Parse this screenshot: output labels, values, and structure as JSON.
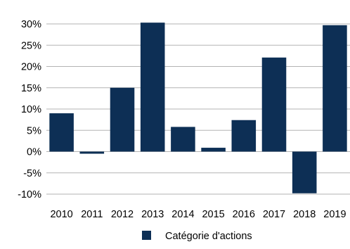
{
  "chart_data": {
    "type": "bar",
    "categories": [
      "2010",
      "2011",
      "2012",
      "2013",
      "2014",
      "2015",
      "2016",
      "2017",
      "2018",
      "2019"
    ],
    "series": [
      {
        "name": "Catégorie d'actions",
        "values": [
          9.0,
          -0.5,
          15.0,
          30.3,
          5.8,
          0.9,
          7.4,
          22.1,
          -9.8,
          29.7
        ],
        "color": "#0d2f55"
      }
    ],
    "ylim": [
      -10,
      30
    ],
    "yticks": [
      30,
      25,
      20,
      15,
      10,
      5,
      0,
      -5,
      -10
    ],
    "ytick_labels": [
      "30%",
      "25%",
      "20%",
      "15%",
      "10%",
      "5%",
      "0%",
      "-5%",
      "-10%"
    ],
    "grid": true,
    "legend": "bottom",
    "title": "",
    "xlabel": "",
    "ylabel": ""
  }
}
